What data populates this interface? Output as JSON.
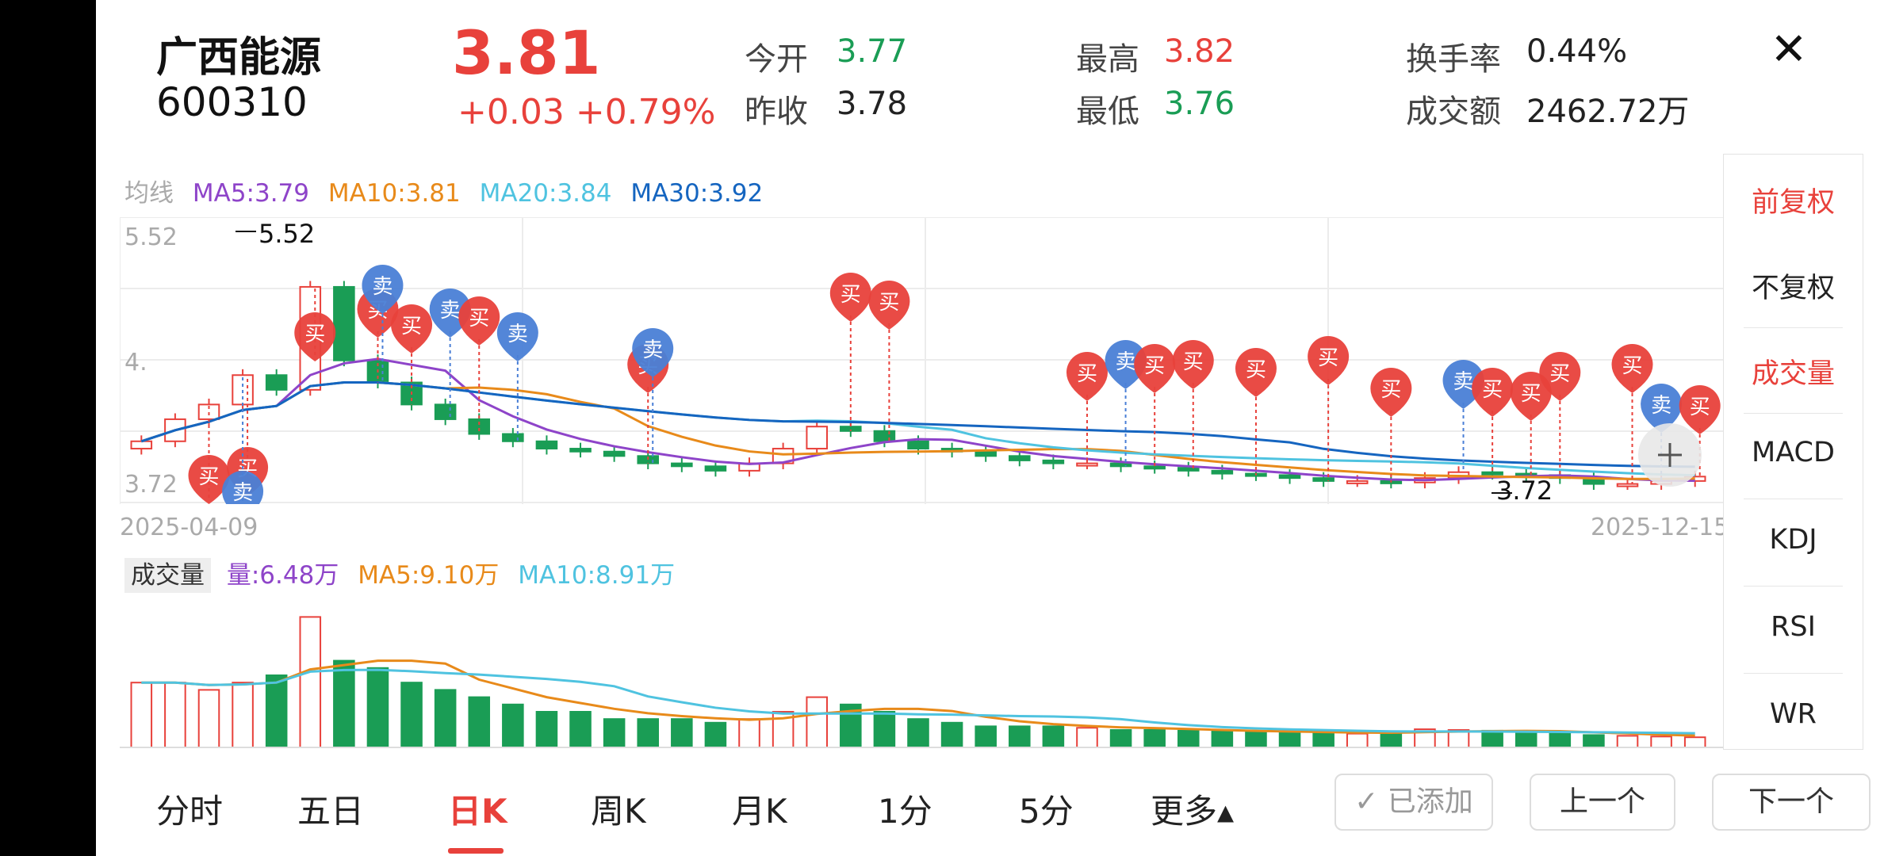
{
  "stock": {
    "name": "广西能源",
    "code": "600310",
    "price": "3.81",
    "change": "+0.03 +0.79%"
  },
  "stats": {
    "open_label": "今开",
    "open": "3.77",
    "prev_close_label": "昨收",
    "prev_close": "3.78",
    "high_label": "最高",
    "high": "3.82",
    "low_label": "最低",
    "low": "3.76",
    "turnover_rate_label": "换手率",
    "turnover_rate": "0.44%",
    "amount_label": "成交额",
    "amount": "2462.72万"
  },
  "close_icon": "close-icon",
  "ma_legend": {
    "title": "均线",
    "ma5": "MA5:3.79",
    "ma10": "MA10:3.81",
    "ma20": "MA20:3.84",
    "ma30": "MA30:3.92"
  },
  "kline_axis": {
    "y_top": "5.52",
    "y_mid": "4.",
    "y_bottom": "3.72",
    "max_marker": "5.52",
    "min_marker": "3.72",
    "date_start": "2025-04-09",
    "date_end": "2025-12-15"
  },
  "signals": {
    "buy": "买",
    "sell": "卖"
  },
  "vol_legend": {
    "tag": "成交量",
    "vol": "量:6.48万",
    "ma5": "MA5:9.10万",
    "ma10": "MA10:8.91万"
  },
  "side_menu": [
    {
      "label": "前复权",
      "active": true
    },
    {
      "label": "不复权",
      "active": false
    },
    {
      "label": "成交量",
      "active": true
    },
    {
      "label": "MACD",
      "active": false
    },
    {
      "label": "KDJ",
      "active": false
    },
    {
      "label": "RSI",
      "active": false
    },
    {
      "label": "WR",
      "active": false
    }
  ],
  "tabs": [
    "分时",
    "五日",
    "日K",
    "周K",
    "月K",
    "1分",
    "5分",
    "更多▴"
  ],
  "active_tab": "日K",
  "buttons": {
    "added": "已添加",
    "prev": "上一个",
    "next": "下一个"
  },
  "colors": {
    "up": "#e8413b",
    "down": "#1a9d55",
    "ma5": "#8e44c9",
    "ma10": "#e88a1a",
    "ma20": "#4fc3e0",
    "ma30": "#1565c0"
  },
  "chart_data": [
    {
      "type": "candlestick",
      "title": "",
      "x_range": [
        "2025-04-09",
        "2025-12-15"
      ],
      "ylim": [
        3.72,
        5.52
      ],
      "y_ticks": [
        "5.52",
        "3.72"
      ],
      "max_label": "5.52",
      "min_label": "3.72",
      "legend": [
        "MA5:3.79",
        "MA10:3.81",
        "MA20:3.84",
        "MA30:3.92"
      ],
      "series_close_approx": [
        4.05,
        4.2,
        4.3,
        4.5,
        4.4,
        5.1,
        4.6,
        4.45,
        4.3,
        4.2,
        4.1,
        4.05,
        4.0,
        3.98,
        3.95,
        3.9,
        3.88,
        3.85,
        3.9,
        4.0,
        4.15,
        4.12,
        4.05,
        4.0,
        3.98,
        3.95,
        3.92,
        3.9,
        3.9,
        3.88,
        3.87,
        3.85,
        3.83,
        3.82,
        3.8,
        3.78,
        3.78,
        3.77,
        3.8,
        3.84,
        3.83,
        3.82,
        3.8,
        3.76,
        3.76,
        3.78,
        3.81
      ]
    },
    {
      "type": "bar",
      "title": "",
      "legend": [
        "量:6.48万",
        "MA5:9.10万",
        "MA10:8.91万"
      ],
      "series_vol_approx": [
        9,
        9,
        8,
        9,
        10,
        18,
        12,
        11,
        9,
        8,
        7,
        6,
        5,
        5,
        4,
        4,
        4,
        3.5,
        4,
        5,
        7,
        6,
        5,
        4,
        3.5,
        3,
        3,
        3,
        2.8,
        2.5,
        2.5,
        2.4,
        2.3,
        2.2,
        2.1,
        2.1,
        2.0,
        2.2,
        2.6,
        2.5,
        2.4,
        2.2,
        2.0,
        1.8,
        1.7,
        1.6,
        1.5
      ]
    }
  ]
}
